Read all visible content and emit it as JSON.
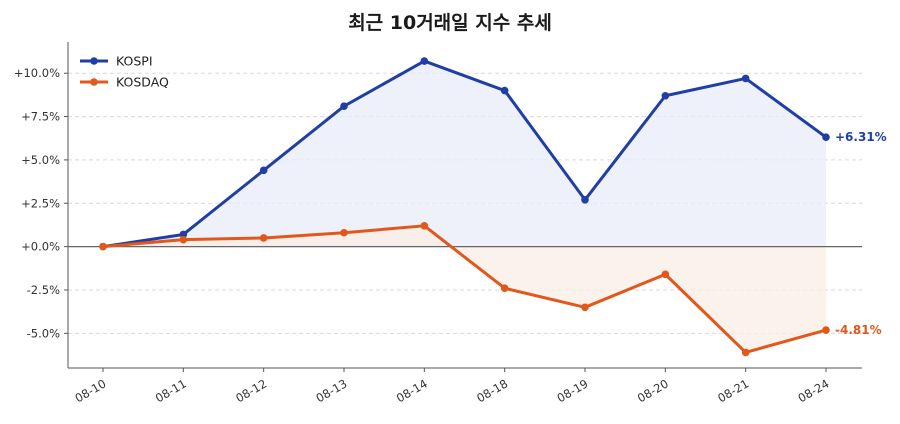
{
  "chart_data": {
    "type": "line",
    "title": "최근 10거래일 지수 추세",
    "xlabel": "",
    "ylabel": "",
    "categories": [
      "08-10",
      "08-11",
      "08-12",
      "08-13",
      "08-14",
      "08-18",
      "08-19",
      "08-20",
      "08-21",
      "08-24"
    ],
    "series": [
      {
        "name": "KOSPI",
        "color": "#1f3fa6",
        "fill": "#e8ecf8",
        "values": [
          0.0,
          0.7,
          4.4,
          8.1,
          10.7,
          9.0,
          2.7,
          8.7,
          9.7,
          6.31
        ],
        "end_label": "+6.31%"
      },
      {
        "name": "KOSDAQ",
        "color": "#e2571a",
        "fill": "#fbeee6",
        "values": [
          0.0,
          0.4,
          0.5,
          0.8,
          1.2,
          -2.4,
          -3.5,
          -1.6,
          -6.1,
          -4.81
        ],
        "end_label": "-4.81%"
      }
    ],
    "ylim": [
      -7.0,
      11.8
    ],
    "yticks": [
      10.0,
      7.5,
      5.0,
      2.5,
      0.0,
      -2.5,
      -5.0
    ],
    "ytick_labels": [
      "+10.0%",
      "+7.5%",
      "+5.0%",
      "+2.5%",
      "+0.0%",
      "-2.5%",
      "-5.0%"
    ],
    "grid": true,
    "legend_position": "top-left",
    "zero_line": true
  }
}
